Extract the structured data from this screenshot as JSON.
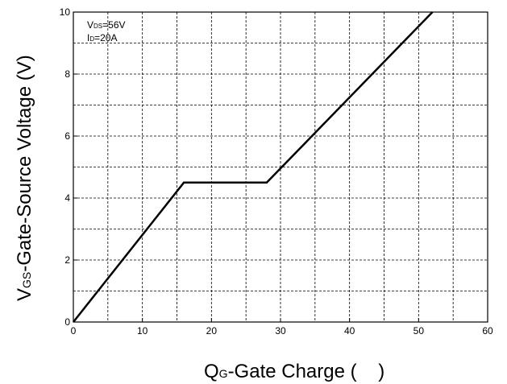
{
  "chart_data": {
    "type": "line",
    "title": "",
    "xlabel": {
      "main": "Q",
      "sub": "G",
      "rest": "-Gate Charge (    )"
    },
    "ylabel": {
      "main": "V",
      "sub": "GS",
      "rest": "-Gate-Source Voltage (V)"
    },
    "xlim": [
      0,
      60
    ],
    "ylim": [
      0,
      10
    ],
    "x_major_ticks": [
      0,
      10,
      20,
      30,
      40,
      50,
      60
    ],
    "y_major_ticks": [
      0,
      2,
      4,
      6,
      8,
      10
    ],
    "x_grid_step": 5,
    "y_grid_step": 1,
    "grid": true,
    "grid_style": "dashed",
    "annotations": [
      {
        "main": "V",
        "sub": "DS",
        "rest": "=56V"
      },
      {
        "main": "I",
        "sub": "D",
        "rest": "=20A"
      }
    ],
    "series": [
      {
        "x": [
          0,
          16,
          28,
          52
        ],
        "y": [
          0,
          4.5,
          4.5,
          10
        ]
      }
    ]
  }
}
